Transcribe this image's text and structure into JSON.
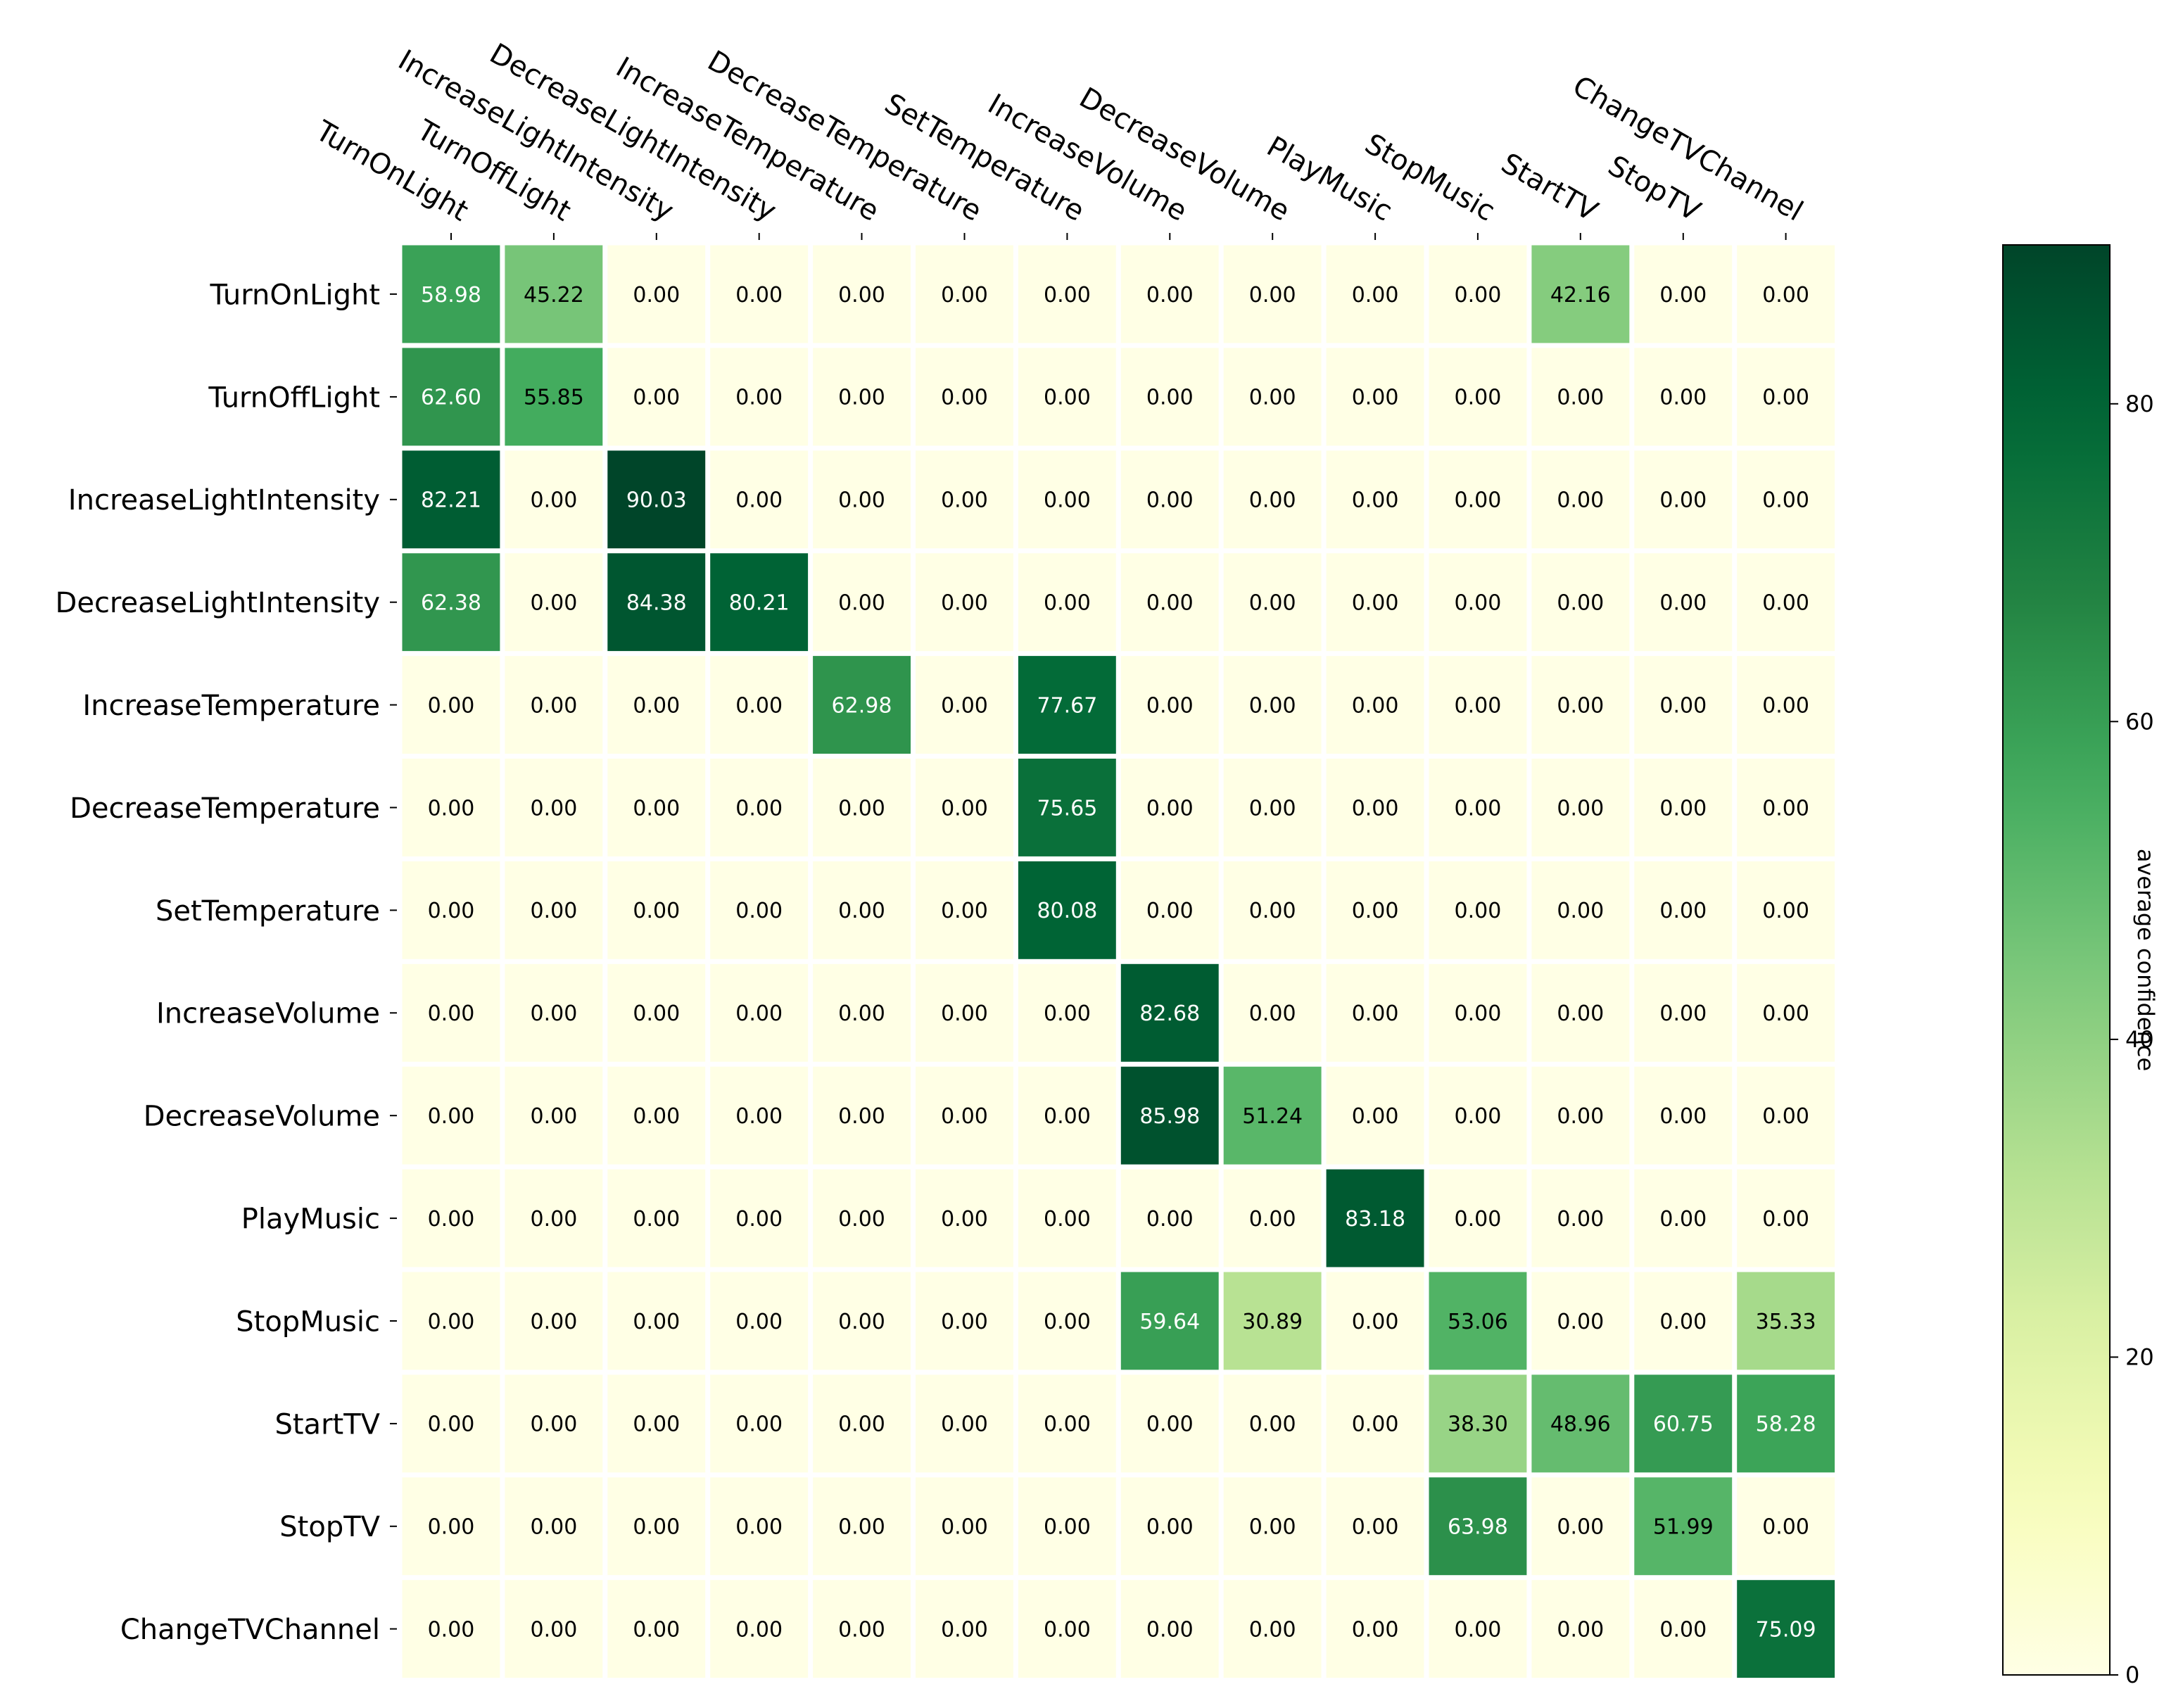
{
  "chart_data": {
    "type": "heatmap",
    "title": "",
    "xlabel": "",
    "ylabel": "",
    "x_categories": [
      "TurnOnLight",
      "TurnOffLight",
      "IncreaseLightIntensity",
      "DecreaseLightIntensity",
      "IncreaseTemperature",
      "DecreaseTemperature",
      "SetTemperature",
      "IncreaseVolume",
      "DecreaseVolume",
      "PlayMusic",
      "StopMusic",
      "StartTV",
      "StopTV",
      "ChangeTVChannel"
    ],
    "y_categories": [
      "TurnOnLight",
      "TurnOffLight",
      "IncreaseLightIntensity",
      "DecreaseLightIntensity",
      "IncreaseTemperature",
      "DecreaseTemperature",
      "SetTemperature",
      "IncreaseVolume",
      "DecreaseVolume",
      "PlayMusic",
      "StopMusic",
      "StartTV",
      "StopTV",
      "ChangeTVChannel"
    ],
    "values": [
      [
        58.98,
        45.22,
        0.0,
        0.0,
        0.0,
        0.0,
        0.0,
        0.0,
        0.0,
        0.0,
        0.0,
        42.16,
        0.0,
        0.0
      ],
      [
        62.6,
        55.85,
        0.0,
        0.0,
        0.0,
        0.0,
        0.0,
        0.0,
        0.0,
        0.0,
        0.0,
        0.0,
        0.0,
        0.0
      ],
      [
        82.21,
        0.0,
        90.03,
        0.0,
        0.0,
        0.0,
        0.0,
        0.0,
        0.0,
        0.0,
        0.0,
        0.0,
        0.0,
        0.0
      ],
      [
        62.38,
        0.0,
        84.38,
        80.21,
        0.0,
        0.0,
        0.0,
        0.0,
        0.0,
        0.0,
        0.0,
        0.0,
        0.0,
        0.0
      ],
      [
        0.0,
        0.0,
        0.0,
        0.0,
        62.98,
        0.0,
        77.67,
        0.0,
        0.0,
        0.0,
        0.0,
        0.0,
        0.0,
        0.0
      ],
      [
        0.0,
        0.0,
        0.0,
        0.0,
        0.0,
        0.0,
        75.65,
        0.0,
        0.0,
        0.0,
        0.0,
        0.0,
        0.0,
        0.0
      ],
      [
        0.0,
        0.0,
        0.0,
        0.0,
        0.0,
        0.0,
        80.08,
        0.0,
        0.0,
        0.0,
        0.0,
        0.0,
        0.0,
        0.0
      ],
      [
        0.0,
        0.0,
        0.0,
        0.0,
        0.0,
        0.0,
        0.0,
        82.68,
        0.0,
        0.0,
        0.0,
        0.0,
        0.0,
        0.0
      ],
      [
        0.0,
        0.0,
        0.0,
        0.0,
        0.0,
        0.0,
        0.0,
        85.98,
        51.24,
        0.0,
        0.0,
        0.0,
        0.0,
        0.0
      ],
      [
        0.0,
        0.0,
        0.0,
        0.0,
        0.0,
        0.0,
        0.0,
        0.0,
        0.0,
        83.18,
        0.0,
        0.0,
        0.0,
        0.0
      ],
      [
        0.0,
        0.0,
        0.0,
        0.0,
        0.0,
        0.0,
        0.0,
        59.64,
        30.89,
        0.0,
        53.06,
        0.0,
        0.0,
        35.33
      ],
      [
        0.0,
        0.0,
        0.0,
        0.0,
        0.0,
        0.0,
        0.0,
        0.0,
        0.0,
        0.0,
        38.3,
        48.96,
        60.75,
        58.28
      ],
      [
        0.0,
        0.0,
        0.0,
        0.0,
        0.0,
        0.0,
        0.0,
        0.0,
        0.0,
        0.0,
        63.98,
        0.0,
        51.99,
        0.0
      ],
      [
        0.0,
        0.0,
        0.0,
        0.0,
        0.0,
        0.0,
        0.0,
        0.0,
        0.0,
        0.0,
        0.0,
        0.0,
        0.0,
        75.09
      ]
    ],
    "value_format": "2 decimals",
    "colormap": "YlGn",
    "color_range": [
      0,
      90
    ],
    "colorbar": {
      "label": "average confidence",
      "ticks": [
        0,
        20,
        40,
        60,
        80
      ]
    },
    "x_tick_position": "top",
    "grid": false,
    "legend": "colorbar-right"
  }
}
